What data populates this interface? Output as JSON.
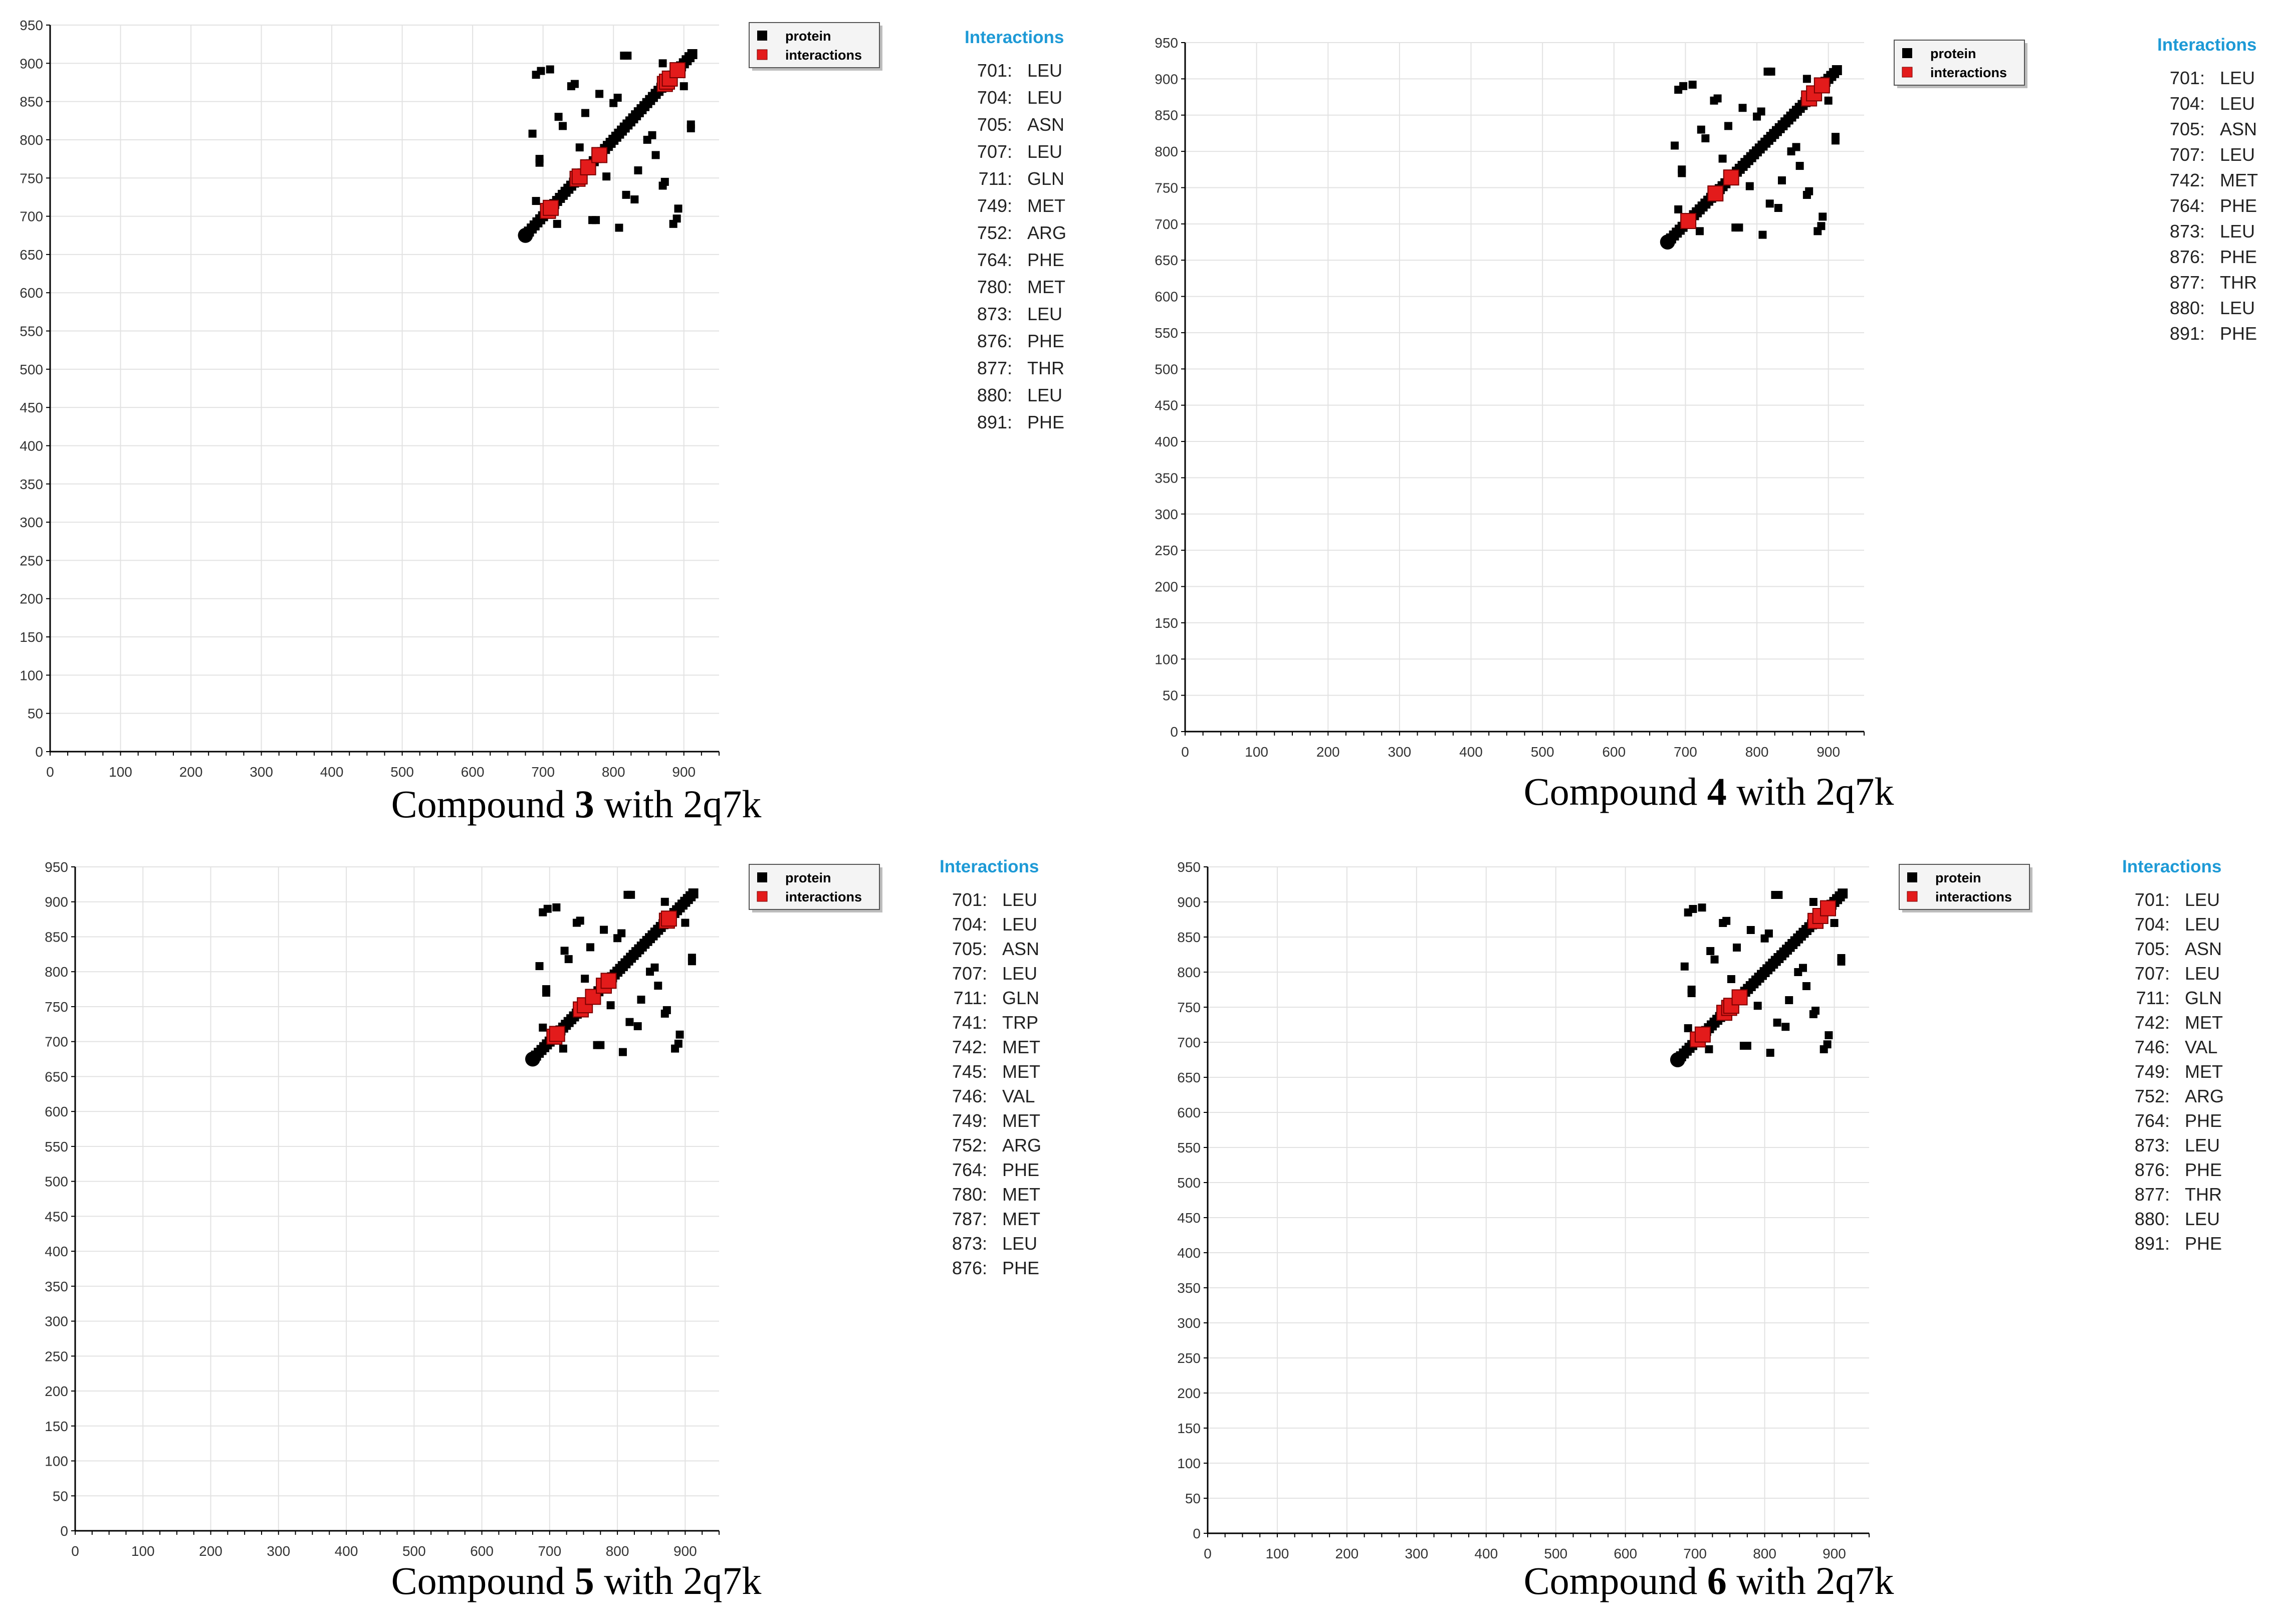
{
  "chart_data": [
    {
      "type": "scatter",
      "title": "",
      "xlabel": "",
      "ylabel": "",
      "xlim": [
        0,
        950
      ],
      "ylim": [
        0,
        950
      ],
      "xticks": [
        0,
        100,
        200,
        300,
        400,
        500,
        600,
        700,
        800,
        900
      ],
      "yticks": [
        0,
        50,
        100,
        150,
        200,
        250,
        300,
        350,
        400,
        450,
        500,
        550,
        600,
        650,
        700,
        750,
        800,
        850,
        900,
        950
      ],
      "grid": true,
      "legend": [
        "protein",
        "interactions"
      ],
      "legend_position": "top-right",
      "caption": {
        "prefix": "Compound ",
        "number": "3",
        "suffix": " with 2q7k"
      },
      "interactions_title": "Interactions",
      "interactions": [
        {
          "num": "701:",
          "res": "LEU"
        },
        {
          "num": "704:",
          "res": "LEU"
        },
        {
          "num": "705:",
          "res": "ASN"
        },
        {
          "num": "707:",
          "res": "LEU"
        },
        {
          "num": "711:",
          "res": "GLN"
        },
        {
          "num": "749:",
          "res": "MET"
        },
        {
          "num": "752:",
          "res": "ARG"
        },
        {
          "num": "764:",
          "res": "PHE"
        },
        {
          "num": "780:",
          "res": "MET"
        },
        {
          "num": "873:",
          "res": "LEU"
        },
        {
          "num": "876:",
          "res": "PHE"
        },
        {
          "num": "877:",
          "res": "THR"
        },
        {
          "num": "880:",
          "res": "LEU"
        },
        {
          "num": "891:",
          "res": "PHE"
        }
      ],
      "interaction_points": [
        [
          707,
          707
        ],
        [
          711,
          711
        ],
        [
          749,
          749
        ],
        [
          752,
          752
        ],
        [
          764,
          764
        ],
        [
          780,
          780
        ],
        [
          873,
          873
        ],
        [
          876,
          876
        ],
        [
          880,
          880
        ],
        [
          891,
          891
        ]
      ]
    },
    {
      "type": "scatter",
      "title": "",
      "xlabel": "",
      "ylabel": "",
      "xlim": [
        0,
        950
      ],
      "ylim": [
        0,
        950
      ],
      "xticks": [
        0,
        100,
        200,
        300,
        400,
        500,
        600,
        700,
        800,
        900
      ],
      "yticks": [
        0,
        50,
        100,
        150,
        200,
        250,
        300,
        350,
        400,
        450,
        500,
        550,
        600,
        650,
        700,
        750,
        800,
        850,
        900,
        950
      ],
      "grid": true,
      "legend": [
        "protein",
        "interactions"
      ],
      "legend_position": "top-right",
      "caption": {
        "prefix": "Compound ",
        "number": "4",
        "suffix": " with 2q7k"
      },
      "interactions_title": "Interactions",
      "interactions": [
        {
          "num": "701:",
          "res": "LEU"
        },
        {
          "num": "704:",
          "res": "LEU"
        },
        {
          "num": "705:",
          "res": "ASN"
        },
        {
          "num": "707:",
          "res": "LEU"
        },
        {
          "num": "742:",
          "res": "MET"
        },
        {
          "num": "764:",
          "res": "PHE"
        },
        {
          "num": "873:",
          "res": "LEU"
        },
        {
          "num": "876:",
          "res": "PHE"
        },
        {
          "num": "877:",
          "res": "THR"
        },
        {
          "num": "880:",
          "res": "LEU"
        },
        {
          "num": "891:",
          "res": "PHE"
        }
      ],
      "interaction_points": [
        [
          704,
          704
        ],
        [
          742,
          742
        ],
        [
          764,
          764
        ],
        [
          873,
          873
        ],
        [
          880,
          880
        ],
        [
          891,
          891
        ]
      ]
    },
    {
      "type": "scatter",
      "title": "",
      "xlabel": "",
      "ylabel": "",
      "xlim": [
        0,
        950
      ],
      "ylim": [
        0,
        950
      ],
      "xticks": [
        0,
        100,
        200,
        300,
        400,
        500,
        600,
        700,
        800,
        900
      ],
      "yticks": [
        0,
        50,
        100,
        150,
        200,
        250,
        300,
        350,
        400,
        450,
        500,
        550,
        600,
        650,
        700,
        750,
        800,
        850,
        900,
        950
      ],
      "grid": true,
      "legend": [
        "protein",
        "interactions"
      ],
      "legend_position": "top-right",
      "caption": {
        "prefix": "Compound ",
        "number": "5",
        "suffix": " with 2q7k"
      },
      "interactions_title": "Interactions",
      "interactions": [
        {
          "num": "701:",
          "res": "LEU"
        },
        {
          "num": "704:",
          "res": "LEU"
        },
        {
          "num": "705:",
          "res": "ASN"
        },
        {
          "num": "707:",
          "res": "LEU"
        },
        {
          "num": "711:",
          "res": "GLN"
        },
        {
          "num": "741:",
          "res": "TRP"
        },
        {
          "num": "742:",
          "res": "MET"
        },
        {
          "num": "745:",
          "res": "MET"
        },
        {
          "num": "746:",
          "res": "VAL"
        },
        {
          "num": "749:",
          "res": "MET"
        },
        {
          "num": "752:",
          "res": "ARG"
        },
        {
          "num": "764:",
          "res": "PHE"
        },
        {
          "num": "780:",
          "res": "MET"
        },
        {
          "num": "787:",
          "res": "MET"
        },
        {
          "num": "873:",
          "res": "LEU"
        },
        {
          "num": "876:",
          "res": "PHE"
        }
      ],
      "interaction_points": [
        [
          707,
          707
        ],
        [
          711,
          711
        ],
        [
          746,
          746
        ],
        [
          752,
          752
        ],
        [
          764,
          764
        ],
        [
          780,
          780
        ],
        [
          787,
          787
        ],
        [
          873,
          873
        ],
        [
          876,
          876
        ]
      ]
    },
    {
      "type": "scatter",
      "title": "",
      "xlabel": "",
      "ylabel": "",
      "xlim": [
        0,
        950
      ],
      "ylim": [
        0,
        950
      ],
      "xticks": [
        0,
        100,
        200,
        300,
        400,
        500,
        600,
        700,
        800,
        900
      ],
      "yticks": [
        0,
        50,
        100,
        150,
        200,
        250,
        300,
        350,
        400,
        450,
        500,
        550,
        600,
        650,
        700,
        750,
        800,
        850,
        900,
        950
      ],
      "grid": true,
      "legend": [
        "protein",
        "interactions"
      ],
      "legend_position": "top-right",
      "caption": {
        "prefix": "Compound ",
        "number": "6",
        "suffix": " with 2q7k"
      },
      "interactions_title": "Interactions",
      "interactions": [
        {
          "num": "701:",
          "res": "LEU"
        },
        {
          "num": "704:",
          "res": "LEU"
        },
        {
          "num": "705:",
          "res": "ASN"
        },
        {
          "num": "707:",
          "res": "LEU"
        },
        {
          "num": "711:",
          "res": "GLN"
        },
        {
          "num": "742:",
          "res": "MET"
        },
        {
          "num": "746:",
          "res": "VAL"
        },
        {
          "num": "749:",
          "res": "MET"
        },
        {
          "num": "752:",
          "res": "ARG"
        },
        {
          "num": "764:",
          "res": "PHE"
        },
        {
          "num": "873:",
          "res": "LEU"
        },
        {
          "num": "876:",
          "res": "PHE"
        },
        {
          "num": "877:",
          "res": "THR"
        },
        {
          "num": "880:",
          "res": "LEU"
        },
        {
          "num": "891:",
          "res": "PHE"
        }
      ],
      "interaction_points": [
        [
          704,
          704
        ],
        [
          711,
          711
        ],
        [
          742,
          742
        ],
        [
          749,
          749
        ],
        [
          752,
          752
        ],
        [
          764,
          764
        ],
        [
          873,
          873
        ],
        [
          880,
          880
        ],
        [
          891,
          891
        ]
      ]
    }
  ],
  "protein_contact_map": {
    "diagonal_range": [
      680,
      912
    ],
    "contacts": [
      [
        690,
        885
      ],
      [
        697,
        890
      ],
      [
        885,
        690
      ],
      [
        890,
        697
      ],
      [
        745,
        873
      ],
      [
        873,
        745
      ],
      [
        815,
        910
      ],
      [
        910,
        815
      ],
      [
        685,
        808
      ],
      [
        808,
        685
      ],
      [
        695,
        770
      ],
      [
        770,
        695
      ],
      [
        760,
        835
      ],
      [
        835,
        760
      ],
      [
        780,
        860
      ],
      [
        860,
        780
      ],
      [
        818,
        728
      ],
      [
        728,
        818
      ],
      [
        830,
        722
      ],
      [
        722,
        830
      ],
      [
        806,
        855
      ],
      [
        855,
        806
      ],
      [
        900,
        870
      ],
      [
        870,
        900
      ],
      [
        910,
        820
      ],
      [
        820,
        910
      ],
      [
        870,
        740
      ],
      [
        740,
        870
      ],
      [
        892,
        710
      ],
      [
        710,
        892
      ],
      [
        775,
        695
      ],
      [
        695,
        775
      ],
      [
        848,
        800
      ],
      [
        800,
        848
      ],
      [
        752,
        790
      ],
      [
        790,
        752
      ],
      [
        720,
        690
      ],
      [
        690,
        720
      ]
    ],
    "start_point": [
      675,
      675
    ]
  },
  "colors": {
    "protein": "#000000",
    "interactions": "#e31b1b",
    "title": "#1e9ad6",
    "grid": "#e2e2e2"
  }
}
